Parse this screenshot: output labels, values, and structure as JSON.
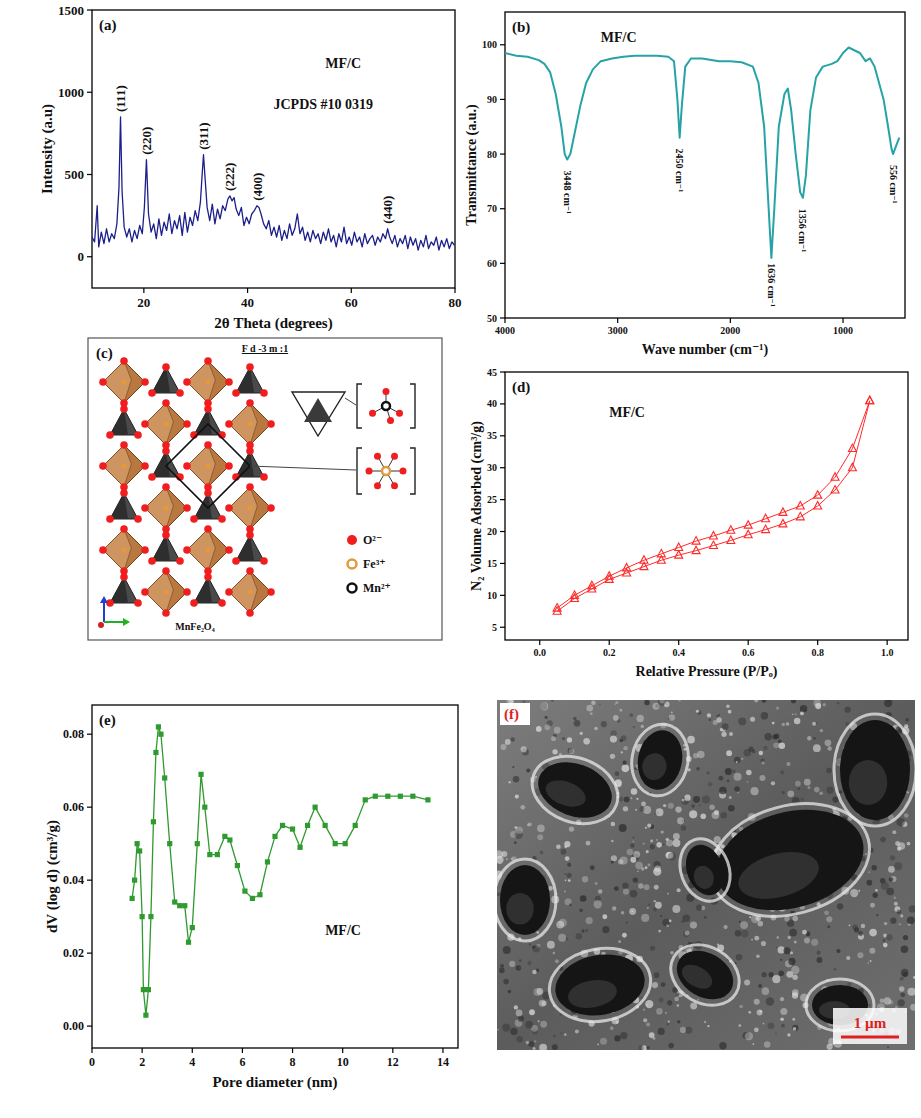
{
  "chart_data": [
    {
      "type": "line",
      "panel": "(a)",
      "x_label": "2θ Theta (degrees)",
      "y_label": "Intensity (a.u)",
      "xlim": [
        10,
        80
      ],
      "ylim": [
        -190,
        1500
      ],
      "xticks": [
        20,
        40,
        60,
        80
      ],
      "yticks": [
        0,
        500,
        1000,
        1500
      ],
      "grid": false,
      "line_style": "solid",
      "series": [
        {
          "color": "#1c1f8a",
          "x": [
            10,
            10.5,
            11,
            11.3,
            11.8,
            12.3,
            12.8,
            13.3,
            13.8,
            14.3,
            14.8,
            15.2,
            15.5,
            15.8,
            16.2,
            16.7,
            17.2,
            17.7,
            18.2,
            18.7,
            19.2,
            19.7,
            20.1,
            20.5,
            20.9,
            21.4,
            21.9,
            22.4,
            22.9,
            23.4,
            23.9,
            24.4,
            24.9,
            25.4,
            25.9,
            26.4,
            26.9,
            27.4,
            27.9,
            28.4,
            28.9,
            29.4,
            29.9,
            30.4,
            30.9,
            31.2,
            31.5,
            31.8,
            32.2,
            32.7,
            33.2,
            33.7,
            34.2,
            34.7,
            35.2,
            35.7,
            36.2,
            36.6,
            37,
            37.4,
            37.8,
            38.3,
            38.8,
            39.3,
            39.8,
            40.3,
            40.8,
            41.3,
            41.8,
            42.2,
            42.6,
            43.1,
            43.6,
            44.1,
            44.6,
            45.1,
            45.6,
            46.1,
            46.6,
            47.1,
            47.6,
            48.1,
            48.6,
            49.1,
            49.6,
            50.1,
            50.6,
            51.1,
            51.6,
            52.1,
            52.6,
            53.1,
            53.6,
            54.1,
            54.6,
            55.1,
            55.6,
            56.1,
            56.6,
            57.1,
            57.6,
            58.1,
            58.6,
            59.1,
            59.6,
            60.1,
            60.6,
            61.1,
            61.6,
            62.1,
            62.6,
            63.1,
            63.6,
            64.1,
            64.6,
            65.1,
            65.6,
            66.1,
            66.6,
            67,
            67.4,
            67.9,
            68.4,
            68.9,
            69.4,
            69.9,
            70.4,
            70.9,
            71.4,
            71.9,
            72.4,
            72.9,
            73.4,
            73.9,
            74.4,
            74.9,
            75.4,
            75.9,
            76.4,
            76.9,
            77.4,
            77.9,
            78.4,
            78.9,
            79.4,
            79.9
          ],
          "values": [
            120,
            90,
            310,
            60,
            150,
            80,
            170,
            90,
            140,
            110,
            200,
            420,
            850,
            400,
            180,
            120,
            170,
            90,
            160,
            110,
            190,
            140,
            300,
            590,
            260,
            150,
            200,
            110,
            230,
            130,
            210,
            160,
            260,
            140,
            220,
            170,
            250,
            130,
            270,
            150,
            240,
            190,
            280,
            220,
            330,
            480,
            620,
            480,
            300,
            220,
            320,
            200,
            290,
            230,
            310,
            280,
            350,
            370,
            340,
            360,
            290,
            250,
            300,
            190,
            240,
            200,
            260,
            280,
            310,
            300,
            260,
            200,
            170,
            220,
            130,
            180,
            120,
            190,
            100,
            160,
            110,
            200,
            130,
            170,
            260,
            140,
            180,
            100,
            150,
            90,
            160,
            110,
            140,
            80,
            150,
            100,
            170,
            90,
            130,
            60,
            140,
            90,
            180,
            80,
            120,
            70,
            150,
            90,
            120,
            60,
            140,
            80,
            110,
            130,
            70,
            120,
            90,
            140,
            110,
            170,
            120,
            80,
            130,
            60,
            110,
            80,
            130,
            50,
            120,
            70,
            110,
            40,
            100,
            60,
            130,
            50,
            90,
            70,
            120,
            40,
            100,
            60,
            110,
            50,
            90,
            70
          ]
        }
      ],
      "peak_labels": [
        {
          "text": "(111)",
          "x": 15.5,
          "y": 880
        },
        {
          "text": "(220)",
          "x": 20.5,
          "y": 620
        },
        {
          "text": "(311)",
          "x": 31.5,
          "y": 650
        },
        {
          "text": "(222)",
          "x": 36.6,
          "y": 400
        },
        {
          "text": "(400)",
          "x": 42,
          "y": 340
        },
        {
          "text": "(440)",
          "x": 67,
          "y": 200
        }
      ],
      "annotations": [
        {
          "text": "MF/C",
          "x": 55,
          "y": 1150
        },
        {
          "text": "JCPDS #10 0319",
          "x": 45,
          "y": 900
        }
      ]
    },
    {
      "type": "line",
      "panel": "(b)",
      "x_label": "Wave number (cm⁻¹)",
      "y_label": "Transmittance (a.u.)",
      "xlim": [
        4000,
        450
      ],
      "ylim": [
        50,
        106
      ],
      "xticks": [
        4000,
        3000,
        2000,
        1000
      ],
      "yticks": [
        50,
        60,
        70,
        80,
        90,
        100
      ],
      "grid": false,
      "line_style": "solid",
      "series": [
        {
          "color": "#26a3a6",
          "x": [
            4000,
            3900,
            3800,
            3700,
            3650,
            3600,
            3550,
            3500,
            3470,
            3448,
            3420,
            3380,
            3330,
            3280,
            3220,
            3150,
            3050,
            2950,
            2850,
            2750,
            2650,
            2550,
            2500,
            2470,
            2450,
            2430,
            2400,
            2350,
            2250,
            2100,
            2000,
            1900,
            1800,
            1750,
            1700,
            1660,
            1636,
            1610,
            1570,
            1520,
            1490,
            1460,
            1420,
            1380,
            1356,
            1330,
            1290,
            1240,
            1180,
            1100,
            1050,
            1000,
            950,
            900,
            850,
            800,
            760,
            720,
            680,
            640,
            600,
            570,
            556,
            520,
            500
          ],
          "values": [
            98.5,
            98,
            97.8,
            97.2,
            96.5,
            95,
            91,
            85,
            80,
            79,
            80,
            84,
            89,
            93,
            95.5,
            97,
            97.5,
            97.8,
            98,
            98,
            98,
            97.8,
            97,
            90,
            83,
            89,
            96,
            97.5,
            97.5,
            97,
            97,
            96.8,
            96,
            93,
            85,
            70,
            61,
            70,
            85,
            91,
            92,
            88,
            80,
            73,
            72,
            76,
            88,
            94,
            96,
            96.5,
            97,
            98.5,
            99.5,
            99,
            98.5,
            97,
            97.5,
            96,
            93,
            90,
            85,
            81,
            80,
            82,
            83
          ]
        }
      ],
      "peak_labels": [
        {
          "text": "3448 cm⁻¹",
          "x": 3448,
          "y": 77
        },
        {
          "text": "2450 cm⁻¹",
          "x": 2450,
          "y": 81
        },
        {
          "text": "1636 cm⁻¹",
          "x": 1636,
          "y": 60
        },
        {
          "text": "1356 cm⁻¹",
          "x": 1356,
          "y": 70
        },
        {
          "text": "556 cm⁻¹",
          "x": 556,
          "y": 78
        }
      ],
      "annotations": [
        {
          "text": "MF/C",
          "x": 3150,
          "y": 100.5
        }
      ]
    },
    {
      "type": "line",
      "panel": "(d)",
      "x_label": "Relative Pressure (P/Pₒ)",
      "y_label": "N₂ Volume Adsorbed (cm³/g)",
      "xlim": [
        -0.1,
        1.06
      ],
      "ylim": [
        3,
        45
      ],
      "xticks": [
        {
          "value": 0,
          "label": "0.0"
        },
        0.2,
        0.4,
        0.6,
        0.8,
        {
          "value": 1,
          "label": "1.0"
        }
      ],
      "yticks": [
        5,
        10,
        15,
        20,
        25,
        30,
        35,
        40,
        45
      ],
      "grid": false,
      "marker": "triangle",
      "line_style": "solid",
      "series": [
        {
          "color": "#ff2a2a",
          "x": [
            0.05,
            0.1,
            0.15,
            0.2,
            0.25,
            0.3,
            0.35,
            0.4,
            0.45,
            0.5,
            0.55,
            0.6,
            0.65,
            0.7,
            0.75,
            0.8,
            0.85,
            0.9,
            0.95
          ],
          "values": [
            7.5,
            9.5,
            11,
            12.5,
            13.5,
            14.5,
            15.5,
            16.3,
            17,
            17.8,
            18.6,
            19.5,
            20.3,
            21.2,
            22.3,
            24,
            26.5,
            30,
            40.5
          ]
        },
        {
          "color": "#ff2a2a",
          "x": [
            0.95,
            0.9,
            0.85,
            0.8,
            0.75,
            0.7,
            0.65,
            0.6,
            0.55,
            0.5,
            0.45,
            0.4,
            0.35,
            0.3,
            0.25,
            0.2,
            0.15,
            0.1,
            0.05
          ],
          "values": [
            40.5,
            33,
            28.5,
            25.7,
            24,
            23,
            22,
            21,
            20.2,
            19.3,
            18.5,
            17.5,
            16.5,
            15.5,
            14.3,
            13,
            11.5,
            10,
            8
          ]
        }
      ],
      "annotations": [
        {
          "text": "MF/C",
          "x": 0.2,
          "y": 38
        }
      ]
    },
    {
      "type": "line",
      "panel": "(e)",
      "x_label": "Pore diameter (nm)",
      "y_label": "dV (log d) (cm³/g)",
      "xlim": [
        0,
        14.6
      ],
      "ylim": [
        -0.006,
        0.088
      ],
      "xticks": [
        0,
        2,
        4,
        6,
        8,
        10,
        12,
        14
      ],
      "yticks": [
        {
          "value": 0,
          "label": "0.00"
        },
        0.02,
        0.04,
        0.06,
        0.08
      ],
      "grid": false,
      "marker": "square",
      "line_style": "solid",
      "series": [
        {
          "color": "#2f9a2f",
          "x": [
            1.6,
            1.7,
            1.8,
            1.9,
            2.0,
            2.05,
            2.15,
            2.25,
            2.35,
            2.45,
            2.55,
            2.65,
            2.75,
            2.9,
            3.1,
            3.3,
            3.5,
            3.7,
            3.85,
            4.0,
            4.2,
            4.35,
            4.5,
            4.7,
            5.0,
            5.3,
            5.5,
            5.8,
            6.1,
            6.4,
            6.7,
            7.0,
            7.3,
            7.6,
            8.0,
            8.3,
            8.6,
            8.9,
            9.3,
            9.7,
            10.1,
            10.5,
            10.9,
            11.3,
            11.8,
            12.3,
            12.8,
            13.4
          ],
          "values": [
            0.035,
            0.04,
            0.05,
            0.048,
            0.03,
            0.01,
            0.003,
            0.01,
            0.03,
            0.056,
            0.075,
            0.082,
            0.08,
            0.068,
            0.05,
            0.034,
            0.033,
            0.033,
            0.023,
            0.027,
            0.05,
            0.069,
            0.06,
            0.047,
            0.047,
            0.052,
            0.051,
            0.044,
            0.037,
            0.035,
            0.036,
            0.045,
            0.052,
            0.055,
            0.054,
            0.049,
            0.055,
            0.06,
            0.055,
            0.05,
            0.05,
            0.055,
            0.062,
            0.063,
            0.063,
            0.063,
            0.063,
            0.062
          ]
        }
      ],
      "annotations": [
        {
          "text": "MF/C",
          "x": 9.3,
          "y": 0.025
        }
      ]
    }
  ],
  "diagram": {
    "panel": "(c)",
    "title": "F d -3 m :1",
    "formula": "MnFe₂O₄",
    "legend": [
      {
        "label": "O²⁻",
        "color": "#f01e1e"
      },
      {
        "label": "Fe³⁺",
        "color": "#e39a3a"
      },
      {
        "label": "Mn²⁺",
        "color": "#111111"
      }
    ]
  },
  "image": {
    "panel": "(f)",
    "scale_bar": "1 µm"
  }
}
